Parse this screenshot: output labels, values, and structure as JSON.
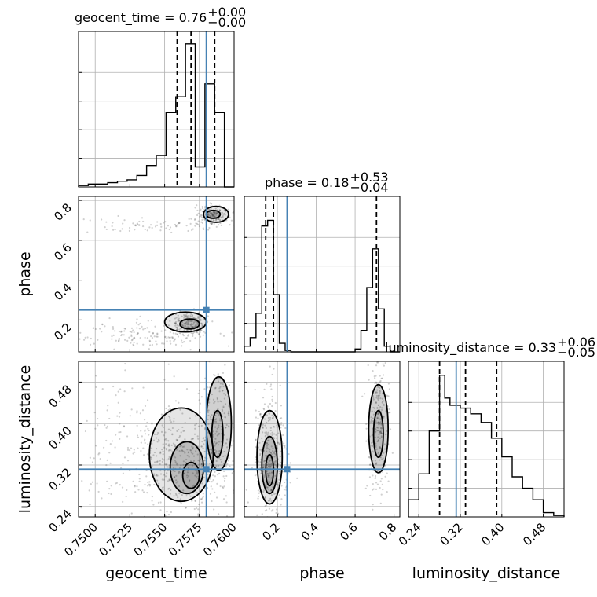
{
  "chart_data": {
    "type": "corner",
    "parameters": [
      "geocent_time",
      "phase",
      "luminosity_distance"
    ],
    "truths": {
      "geocent_time": 0.758,
      "phase": 0.25,
      "luminosity_distance": 0.312
    },
    "grid": true,
    "marginals": [
      {
        "param": "geocent_time",
        "title": {
          "main": "geocent_time = 0.76",
          "sup": "+0.00",
          "sub": "−0.00"
        },
        "range": [
          0.7488,
          0.76
        ],
        "quantiles": [
          0.7559,
          0.7569,
          0.7586
        ],
        "bins": [
          0.7488,
          0.7495,
          0.7502,
          0.7509,
          0.7516,
          0.7523,
          0.753,
          0.7537,
          0.7544,
          0.7551,
          0.7558,
          0.7565,
          0.7572,
          0.7579,
          0.7586,
          0.7593,
          0.76
        ],
        "counts": [
          0.01,
          0.02,
          0.02,
          0.03,
          0.04,
          0.05,
          0.08,
          0.15,
          0.22,
          0.52,
          0.63,
          1.0,
          0.14,
          0.72,
          0.52,
          0.0
        ]
      },
      {
        "param": "phase",
        "title": {
          "main": "phase = 0.18",
          "sup": "+0.53",
          "sub": "−0.04"
        },
        "range": [
          0.03,
          0.83
        ],
        "quantiles": [
          0.14,
          0.18,
          0.71
        ],
        "bins": [
          0.03,
          0.06,
          0.09,
          0.12,
          0.15,
          0.18,
          0.21,
          0.24,
          0.27,
          0.6,
          0.63,
          0.66,
          0.69,
          0.72,
          0.75,
          0.78,
          0.83
        ],
        "counts": [
          0.04,
          0.1,
          0.27,
          0.88,
          0.92,
          0.4,
          0.06,
          0.01,
          0.0,
          0.02,
          0.15,
          0.45,
          0.72,
          0.3,
          0.04,
          0.0
        ]
      },
      {
        "param": "luminosity_distance",
        "title": {
          "main": "luminosity_distance = 0.33",
          "sup": "+0.06",
          "sub": "−0.05"
        },
        "range": [
          0.22,
          0.52
        ],
        "quantiles": [
          0.28,
          0.33,
          0.39
        ],
        "bins": [
          0.22,
          0.24,
          0.26,
          0.28,
          0.29,
          0.3,
          0.32,
          0.34,
          0.36,
          0.38,
          0.4,
          0.42,
          0.44,
          0.46,
          0.48,
          0.5,
          0.52
        ],
        "counts": [
          0.12,
          0.3,
          0.6,
          0.99,
          0.83,
          0.78,
          0.76,
          0.72,
          0.66,
          0.55,
          0.42,
          0.28,
          0.2,
          0.12,
          0.03,
          0.01
        ]
      }
    ],
    "panels": [
      {
        "x": "geocent_time",
        "y": "phase",
        "clusters": [
          {
            "cx": 0.7585,
            "cy": 0.73,
            "sx": 0.0006,
            "sy": 0.025,
            "n": 160
          },
          {
            "cx": 0.7568,
            "cy": 0.18,
            "sx": 0.0006,
            "sy": 0.03,
            "n": 220
          },
          {
            "cx": 0.7535,
            "cy": 0.13,
            "sx": 0.0025,
            "sy": 0.035,
            "n": 160
          },
          {
            "cx": 0.7545,
            "cy": 0.68,
            "sx": 0.0025,
            "sy": 0.02,
            "n": 80
          }
        ],
        "contours": [
          {
            "cx": 0.7587,
            "cy": 0.73,
            "rx": 0.0009,
            "ry": 0.04
          },
          {
            "cx": 0.7585,
            "cy": 0.73,
            "rx": 0.0005,
            "ry": 0.02
          },
          {
            "cx": 0.7565,
            "cy": 0.19,
            "rx": 0.0015,
            "ry": 0.05
          },
          {
            "cx": 0.7568,
            "cy": 0.18,
            "rx": 0.0007,
            "ry": 0.025
          }
        ]
      },
      {
        "x": "geocent_time",
        "y": "luminosity_distance",
        "clusters": [
          {
            "cx": 0.7565,
            "cy": 0.32,
            "sx": 0.002,
            "sy": 0.05,
            "n": 420
          },
          {
            "cx": 0.7588,
            "cy": 0.4,
            "sx": 0.0006,
            "sy": 0.05,
            "n": 160
          },
          {
            "cx": 0.753,
            "cy": 0.36,
            "sx": 0.003,
            "sy": 0.08,
            "n": 200
          }
        ],
        "contours": [
          {
            "cx": 0.7562,
            "cy": 0.34,
            "rx": 0.0023,
            "ry": 0.09
          },
          {
            "cx": 0.7566,
            "cy": 0.315,
            "rx": 0.0012,
            "ry": 0.05
          },
          {
            "cx": 0.7569,
            "cy": 0.3,
            "rx": 0.0006,
            "ry": 0.025
          },
          {
            "cx": 0.7589,
            "cy": 0.4,
            "rx": 0.0009,
            "ry": 0.09
          },
          {
            "cx": 0.7588,
            "cy": 0.38,
            "rx": 0.0004,
            "ry": 0.045
          }
        ]
      },
      {
        "x": "phase",
        "y": "luminosity_distance",
        "clusters": [
          {
            "cx": 0.16,
            "cy": 0.33,
            "sx": 0.04,
            "sy": 0.06,
            "n": 360
          },
          {
            "cx": 0.72,
            "cy": 0.39,
            "sx": 0.03,
            "sy": 0.06,
            "n": 260
          }
        ],
        "contours": [
          {
            "cx": 0.16,
            "cy": 0.335,
            "rx": 0.065,
            "ry": 0.09
          },
          {
            "cx": 0.16,
            "cy": 0.32,
            "rx": 0.04,
            "ry": 0.055
          },
          {
            "cx": 0.16,
            "cy": 0.31,
            "rx": 0.02,
            "ry": 0.03
          },
          {
            "cx": 0.72,
            "cy": 0.39,
            "rx": 0.05,
            "ry": 0.085
          },
          {
            "cx": 0.72,
            "cy": 0.38,
            "rx": 0.025,
            "ry": 0.045
          }
        ]
      }
    ],
    "ticks": {
      "geocent_time": [
        "0.7500",
        "0.7525",
        "0.7550",
        "0.7575",
        "0.7600"
      ],
      "phase": [
        "0.2",
        "0.4",
        "0.6",
        "0.8"
      ],
      "luminosity_distance": [
        "0.24",
        "0.32",
        "0.40",
        "0.48"
      ]
    },
    "axis_labels": {
      "x": [
        "geocent_time",
        "phase",
        "luminosity_distance"
      ],
      "y": [
        "phase",
        "luminosity_distance"
      ]
    },
    "colors": {
      "truth": "#4682b4",
      "hist": "#000000",
      "grid": "#b0b0b0",
      "points": "#444444"
    }
  }
}
